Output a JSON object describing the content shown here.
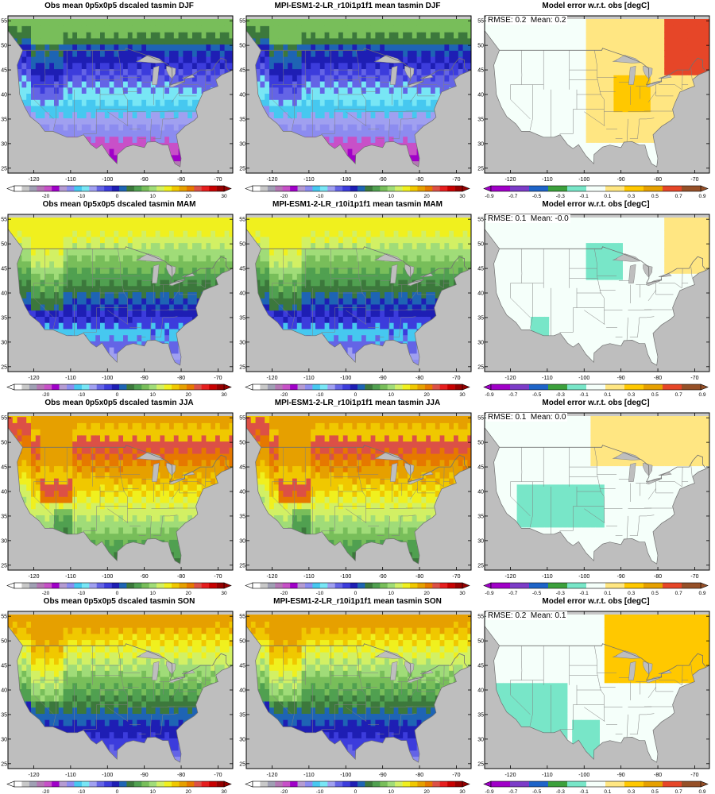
{
  "panels": [
    {
      "title": "Obs mean 0p5x0p5 dscaled tasmin DJF",
      "kind": "abs",
      "season": "DJF"
    },
    {
      "title": "MPI-ESM1-2-LR_r10i1p1f1 mean tasmin DJF",
      "kind": "abs",
      "season": "DJF"
    },
    {
      "title": "Model error w.r.t. obs [degC]",
      "kind": "diff",
      "season": "DJF",
      "rmse_label": "RMSE:",
      "rmse": "0.2",
      "mean_label": "Mean:",
      "mean": "0.2"
    },
    {
      "title": "Obs mean 0p5x0p5 dscaled tasmin MAM",
      "kind": "abs",
      "season": "MAM"
    },
    {
      "title": "MPI-ESM1-2-LR_r10i1p1f1 mean tasmin MAM",
      "kind": "abs",
      "season": "MAM"
    },
    {
      "title": "Model error w.r.t. obs [degC]",
      "kind": "diff",
      "season": "MAM",
      "rmse_label": "RMSE:",
      "rmse": "0.1",
      "mean_label": "Mean:",
      "mean": "-0.0"
    },
    {
      "title": "Obs mean 0p5x0p5 dscaled tasmin JJA",
      "kind": "abs",
      "season": "JJA"
    },
    {
      "title": "MPI-ESM1-2-LR_r10i1p1f1 mean tasmin JJA",
      "kind": "abs",
      "season": "JJA"
    },
    {
      "title": "Model error w.r.t. obs [degC]",
      "kind": "diff",
      "season": "JJA",
      "rmse_label": "RMSE:",
      "rmse": "0.1",
      "mean_label": "Mean:",
      "mean": "0.0"
    },
    {
      "title": "Obs mean 0p5x0p5 dscaled tasmin SON",
      "kind": "abs",
      "season": "SON"
    },
    {
      "title": "MPI-ESM1-2-LR_r10i1p1f1 mean tasmin SON",
      "kind": "abs",
      "season": "SON"
    },
    {
      "title": "Model error w.r.t. obs [degC]",
      "kind": "diff",
      "season": "SON",
      "rmse_label": "RMSE:",
      "rmse": "0.2",
      "mean_label": "Mean:",
      "mean": "0.1"
    }
  ],
  "axes": {
    "lon_ticks": [
      "-120",
      "-110",
      "-100",
      "-90",
      "-80",
      "-70"
    ],
    "lat_ticks": [
      "25",
      "30",
      "35",
      "40",
      "45",
      "50",
      "55"
    ]
  },
  "colorbars": {
    "abs": {
      "labels": [
        "-20",
        "-10",
        "0",
        "10",
        "20",
        "30"
      ],
      "colors": [
        "#ffffff",
        "#c8c8c8",
        "#a0a0b4",
        "#b478b4",
        "#c850c8",
        "#a000c8",
        "#b49bd2",
        "#8c8cf0",
        "#46c8f0",
        "#78e6f5",
        "#a0a0f0",
        "#6464e6",
        "#3c3cdc",
        "#1e1eb4",
        "#1e64b4",
        "#3c783c",
        "#50a050",
        "#78be5a",
        "#a0dc78",
        "#d2f064",
        "#f0f01e",
        "#f0c800",
        "#e6a000",
        "#e67800",
        "#dc5046",
        "#e61e1e",
        "#c80000",
        "#960000"
      ]
    },
    "diff": {
      "labels": [
        "-0.9",
        "-0.7",
        "-0.5",
        "-0.3",
        "-0.1",
        "0.1",
        "0.3",
        "0.5",
        "0.7",
        "0.9"
      ],
      "colors": [
        "#a000c8",
        "#7c3cc8",
        "#1e64c8",
        "#3ca03c",
        "#78e6c8",
        "#f5fffa",
        "#ffe682",
        "#ffc800",
        "#e6a000",
        "#e64628",
        "#965028"
      ]
    }
  }
}
